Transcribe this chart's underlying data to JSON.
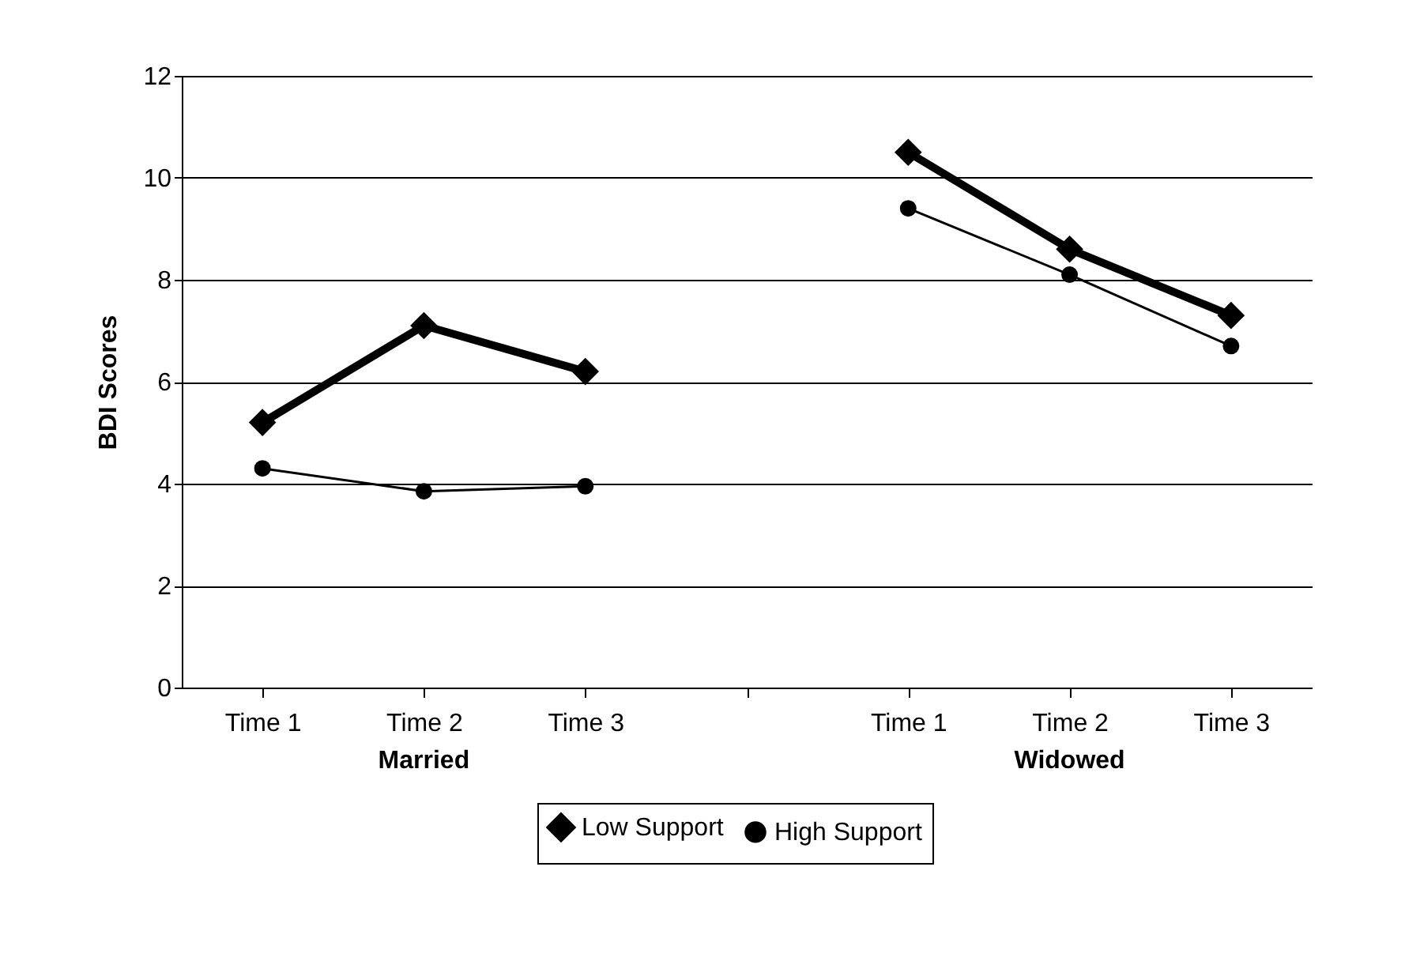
{
  "chart_data": {
    "type": "line",
    "ylabel": "BDI Scores",
    "categories": [
      "Time 1",
      "Time 2",
      "Time 3",
      null,
      "Time 1",
      "Time 2",
      "Time 3"
    ],
    "series": [
      {
        "name": "Low Support",
        "color": "#000000",
        "marker": "diamond",
        "values": [
          5.2,
          7.1,
          6.2,
          null,
          10.5,
          8.6,
          7.3
        ]
      },
      {
        "name": "High Support",
        "color": "#000000",
        "marker": "circle",
        "values": [
          4.3,
          3.85,
          3.95,
          null,
          9.4,
          8.1,
          6.7
        ]
      }
    ],
    "ylim": [
      0,
      12
    ],
    "yticks": [
      0,
      2,
      4,
      6,
      8,
      10,
      12
    ],
    "grid": "y",
    "legend": "bottom",
    "annotations": [
      "Married",
      "Widowed"
    ]
  }
}
